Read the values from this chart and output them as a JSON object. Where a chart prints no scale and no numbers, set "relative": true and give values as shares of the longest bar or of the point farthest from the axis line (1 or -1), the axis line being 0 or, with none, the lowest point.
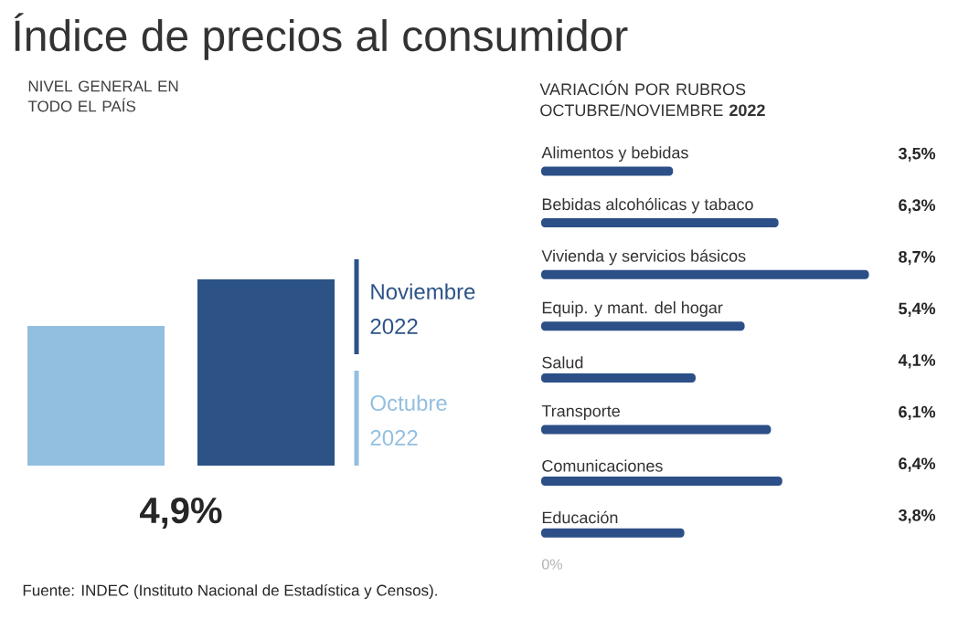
{
  "chart_data": [
    {
      "type": "bar",
      "title": "Índice de precios al consumidor",
      "subtitle": "NIVEL GENERAL EN TODO EL PAÍS",
      "relative": true,
      "categories": [
        null,
        null
      ],
      "values": [
        0.75,
        1
      ],
      "colors": [
        "#92bfe0",
        "#2c5286"
      ],
      "annotations": [
        "4,9%",
        "Noviembre 2022",
        "Octubre 2022",
        "Fuente: INDEC (Instituto Nacional de Estadística y Censos)."
      ]
    },
    {
      "type": "bar",
      "orientation": "horizontal",
      "title": "VARIACIÓN POR RUBROS OCTUBRE/NOVIEMBRE **2022**",
      "categories": [
        "Alimentos y bebidas",
        "Bebidas alcohólicas y tabaco",
        "Vivienda y servicios básicos",
        "Equip. y mant. del hogar",
        "Salud",
        "Transporte",
        "Comunicaciones",
        "Educación"
      ],
      "values": [
        3.5,
        6.3,
        8.7,
        5.4,
        4.1,
        6.1,
        6.4,
        3.8
      ],
      "value_labels": [
        "3,5%",
        "6,3%",
        "8,7%",
        "5,4%",
        "4,1%",
        "6,1%",
        "6,4%",
        "3,8%"
      ],
      "color": "#2c4f87",
      "annotations": [
        "0%"
      ]
    }
  ]
}
